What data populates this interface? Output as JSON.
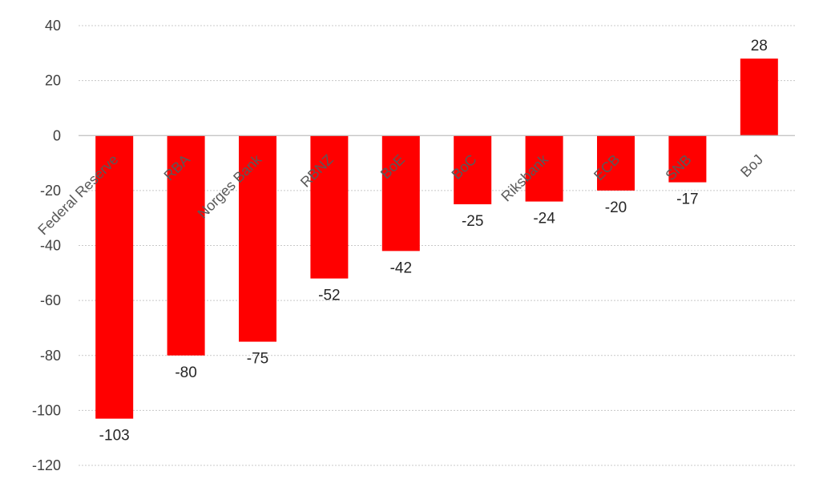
{
  "chart_data": {
    "type": "bar",
    "title": "",
    "xlabel": "",
    "ylabel": "",
    "categories": [
      "Federal Reserve",
      "RBA",
      "Norges Bank",
      "RBNZ",
      "BoE",
      "BoC",
      "Riksbank",
      "ECB",
      "SNB",
      "BoJ"
    ],
    "values": [
      -103,
      -80,
      -75,
      -52,
      -42,
      -25,
      -24,
      -20,
      -17,
      28
    ],
    "data_labels": [
      "-103",
      "-80",
      "-75",
      "-52",
      "-42",
      "-25",
      "-24",
      "-20",
      "-17",
      "28"
    ],
    "ylim": [
      -120,
      40
    ],
    "yticks": [
      40,
      20,
      0,
      -20,
      -40,
      -60,
      -80,
      -100,
      -120
    ],
    "ytick_labels": [
      "40",
      "20",
      "0",
      "-20",
      "-40",
      "-60",
      "-80",
      "-100",
      "-120"
    ],
    "grid": true,
    "legend": "none",
    "bar_color": "#ff0000"
  }
}
